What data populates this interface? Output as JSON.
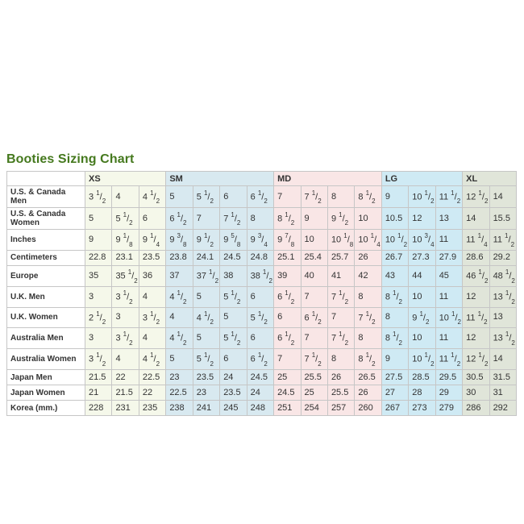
{
  "title": "Booties Sizing Chart",
  "colors": {
    "title_green": "#45791e",
    "border_gray": "#c6c6c6",
    "text": "#333333"
  },
  "table": {
    "size_groups": [
      {
        "label": "XS",
        "span": 3,
        "bg": "#f5f8ea"
      },
      {
        "label": "SM",
        "span": 4,
        "bg": "#d8e9f0"
      },
      {
        "label": "MD",
        "span": 4,
        "bg": "#f9e6e6"
      },
      {
        "label": "LG",
        "span": 3,
        "bg": "#cfeaf4"
      },
      {
        "label": "XL",
        "span": 2,
        "bg": "#e0e5d9"
      }
    ],
    "rows": [
      {
        "label": "U.S. & Canada Men",
        "values": [
          "3 1/2",
          "4",
          "4 1/2",
          "5",
          "5 1/2",
          "6",
          "6 1/2",
          "7",
          "7 1/2",
          "8",
          "8 1/2",
          "9",
          "10 1/2",
          "11 1/2",
          "12 1/2",
          "14"
        ]
      },
      {
        "label": "U.S. & Canada Women",
        "values": [
          "5",
          "5 1/2",
          "6",
          "6 1/2",
          "7",
          "7 1/2",
          "8",
          "8 1/2",
          "9",
          "9 1/2",
          "10",
          "10.5",
          "12",
          "13",
          "14",
          "15.5"
        ]
      },
      {
        "label": "Inches",
        "values": [
          "9",
          "9 1/8",
          "9 1/4",
          "9 3/8",
          "9 1/2",
          "9 5/8",
          "9 3/4",
          "9 7/8",
          "10",
          "10 1/8",
          "10 1/4",
          "10 1/2",
          "10 3/4",
          "11",
          "11 1/4",
          "11 1/2"
        ]
      },
      {
        "label": "Centimeters",
        "values": [
          "22.8",
          "23.1",
          "23.5",
          "23.8",
          "24.1",
          "24.5",
          "24.8",
          "25.1",
          "25.4",
          "25.7",
          "26",
          "26.7",
          "27.3",
          "27.9",
          "28.6",
          "29.2"
        ]
      },
      {
        "label": "Europe",
        "values": [
          "35",
          "35 1/2",
          "36",
          "37",
          "37 1/2",
          "38",
          "38 1/2",
          "39",
          "40",
          "41",
          "42",
          "43",
          "44",
          "45",
          "46 1/2",
          "48 1/2"
        ]
      },
      {
        "label": "U.K. Men",
        "values": [
          "3",
          "3 1/2",
          "4",
          "4 1/2",
          "5",
          "5 1/2",
          "6",
          "6 1/2",
          "7",
          "7 1/2",
          "8",
          "8 1/2",
          "10",
          "11",
          "12",
          "13 1/2"
        ]
      },
      {
        "label": "U.K. Women",
        "values": [
          "2 1/2",
          "3",
          "3 1/2",
          "4",
          "4 1/2",
          "5",
          "5 1/2",
          "6",
          "6 1/2",
          "7",
          "7 1/2",
          "8",
          "9 1/2",
          "10 1/2",
          "11 1/2",
          "13"
        ]
      },
      {
        "label": "Australia Men",
        "values": [
          "3",
          "3 1/2",
          "4",
          "4 1/2",
          "5",
          "5 1/2",
          "6",
          "6 1/2",
          "7",
          "7 1/2",
          "8",
          "8 1/2",
          "10",
          "11",
          "12",
          "13 1/2"
        ]
      },
      {
        "label": "Australia Women",
        "values": [
          "3 1/2",
          "4",
          "4 1/2",
          "5",
          "5 1/2",
          "6",
          "6 1/2",
          "7",
          "7 1/2",
          "8",
          "8 1/2",
          "9",
          "10 1/2",
          "11 1/2",
          "12 1/2",
          "14"
        ]
      },
      {
        "label": "Japan Men",
        "values": [
          "21.5",
          "22",
          "22.5",
          "23",
          "23.5",
          "24",
          "24.5",
          "25",
          "25.5",
          "26",
          "26.5",
          "27.5",
          "28.5",
          "29.5",
          "30.5",
          "31.5"
        ]
      },
      {
        "label": "Japan Women",
        "values": [
          "21",
          "21.5",
          "22",
          "22.5",
          "23",
          "23.5",
          "24",
          "24.5",
          "25",
          "25.5",
          "26",
          "27",
          "28",
          "29",
          "30",
          "31"
        ]
      },
      {
        "label": "Korea (mm.)",
        "values": [
          "228",
          "231",
          "235",
          "238",
          "241",
          "245",
          "248",
          "251",
          "254",
          "257",
          "260",
          "267",
          "273",
          "279",
          "286",
          "292"
        ]
      }
    ]
  },
  "chart_data": {
    "type": "table",
    "title": "Booties Sizing Chart",
    "column_groups": [
      "XS",
      "XS",
      "XS",
      "SM",
      "SM",
      "SM",
      "SM",
      "MD",
      "MD",
      "MD",
      "MD",
      "LG",
      "LG",
      "LG",
      "XL",
      "XL"
    ],
    "row_headers": [
      "U.S. & Canada Men",
      "U.S. & Canada Women",
      "Inches",
      "Centimeters",
      "Europe",
      "U.K. Men",
      "U.K. Women",
      "Australia Men",
      "Australia Women",
      "Japan Men",
      "Japan Women",
      "Korea (mm.)"
    ]
  }
}
